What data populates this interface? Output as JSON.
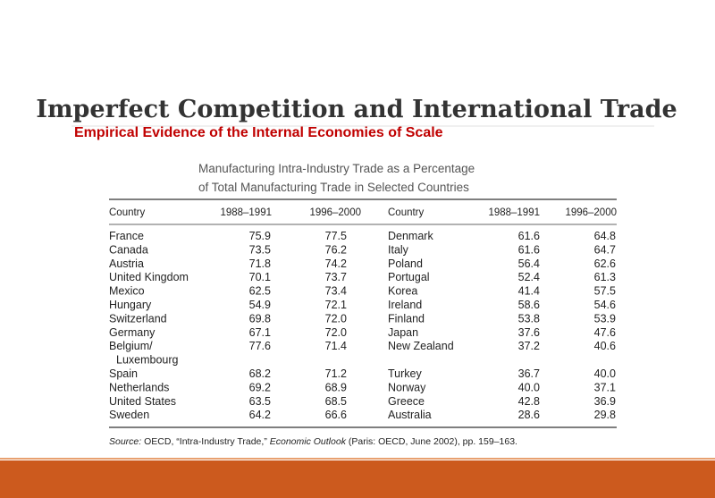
{
  "header": {
    "title": "Imperfect Competition and International Trade",
    "subtitle": "Empirical Evidence of the Internal Economies of Scale"
  },
  "table": {
    "caption": [
      "Manufacturing Intra-Industry Trade as a Percentage",
      "of Total Manufacturing Trade in Selected Countries"
    ],
    "columns": [
      "Country",
      "1988–1991",
      "1996–2000",
      "Country",
      "1988–1991",
      "1996–2000"
    ],
    "rows": [
      [
        "France",
        "75.9",
        "77.5",
        "Denmark",
        "61.6",
        "64.8"
      ],
      [
        "Canada",
        "73.5",
        "76.2",
        "Italy",
        "61.6",
        "64.7"
      ],
      [
        "Austria",
        "71.8",
        "74.2",
        "Poland",
        "56.4",
        "62.6"
      ],
      [
        "United Kingdom",
        "70.1",
        "73.7",
        "Portugal",
        "52.4",
        "61.3"
      ],
      [
        "Mexico",
        "62.5",
        "73.4",
        "Korea",
        "41.4",
        "57.5"
      ],
      [
        "Hungary",
        "54.9",
        "72.1",
        "Ireland",
        "58.6",
        "54.6"
      ],
      [
        "Switzerland",
        "69.8",
        "72.0",
        "Finland",
        "53.8",
        "53.9"
      ],
      [
        "Germany",
        "67.1",
        "72.0",
        "Japan",
        "37.6",
        "47.6"
      ],
      [
        "Belgium/\nLuxembourg",
        "77.6",
        "71.4",
        "New Zealand",
        "37.2",
        "40.6"
      ],
      [
        "Spain",
        "68.2",
        "71.2",
        "Turkey",
        "36.7",
        "40.0"
      ],
      [
        "Netherlands",
        "69.2",
        "68.9",
        "Norway",
        "40.0",
        "37.1"
      ],
      [
        "United States",
        "63.5",
        "68.5",
        "Greece",
        "42.8",
        "36.9"
      ],
      [
        "Sweden",
        "64.2",
        "66.6",
        "Australia",
        "28.6",
        "29.8"
      ]
    ],
    "source": {
      "label": "Source:",
      "text": " OECD, “Intra-Industry Trade,” ",
      "italic": "Economic Outlook",
      "rest": " (Paris: OECD, June 2002), pp. 159–163."
    }
  }
}
